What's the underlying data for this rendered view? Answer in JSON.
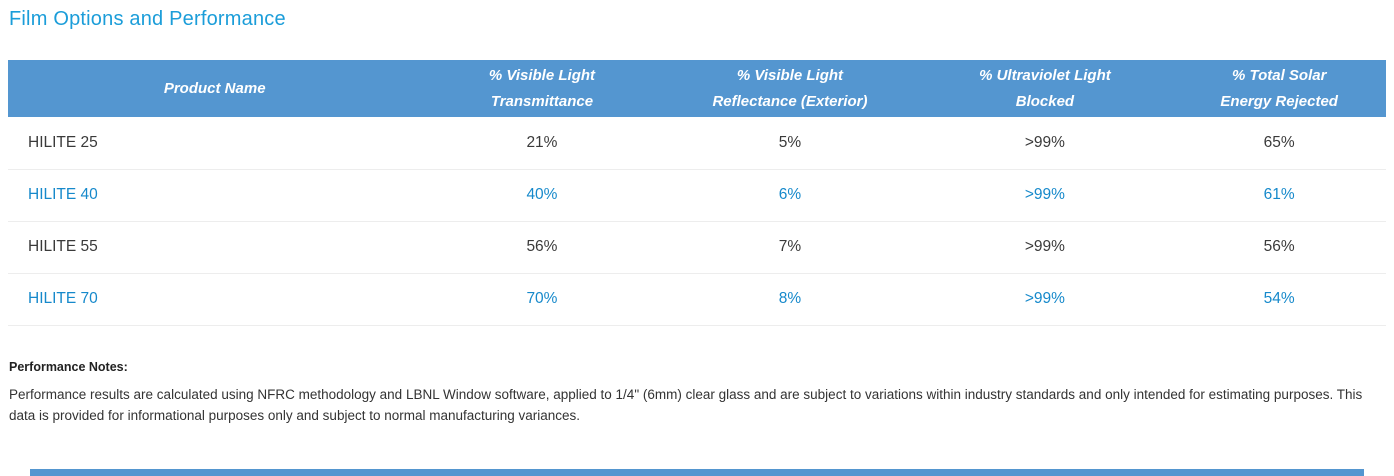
{
  "page": {
    "title": "Film Options and Performance"
  },
  "table": {
    "columns": [
      {
        "line1": "Product Name",
        "line2": ""
      },
      {
        "line1": "% Visible Light",
        "line2": "Transmittance"
      },
      {
        "line1": "% Visible Light",
        "line2": "Reflectance (Exterior)"
      },
      {
        "line1": "% Ultraviolet Light",
        "line2": "Blocked"
      },
      {
        "line1": "% Total Solar",
        "line2": "Energy Rejected"
      }
    ],
    "rows": [
      {
        "name": "HILITE 25",
        "vlt": "21%",
        "reflectance": "5%",
        "uv_blocked": ">99%",
        "tser": "65%"
      },
      {
        "name": "HILITE 40",
        "vlt": "40%",
        "reflectance": "6%",
        "uv_blocked": ">99%",
        "tser": "61%"
      },
      {
        "name": "HILITE 55",
        "vlt": "56%",
        "reflectance": "7%",
        "uv_blocked": ">99%",
        "tser": "56%"
      },
      {
        "name": "HILITE 70",
        "vlt": "70%",
        "reflectance": "8%",
        "uv_blocked": ">99%",
        "tser": "54%"
      }
    ]
  },
  "notes": {
    "heading": "Performance Notes:",
    "body": "Performance results are calculated using NFRC methodology and LBNL Window software, applied to 1/4\" (6mm) clear glass and are subject to variations within industry standards and only intended for estimating purposes. This data is provided for informational purposes only and subject to normal manufacturing variances."
  },
  "colors": {
    "title_blue": "#1b9dd9",
    "header_background": "#5496d0",
    "header_text": "#ffffff",
    "row_text_dark": "#3a3a3a",
    "row_text_blue": "#1689cb",
    "row_divider": "#ededed",
    "bottom_bar": "#5496d0"
  }
}
